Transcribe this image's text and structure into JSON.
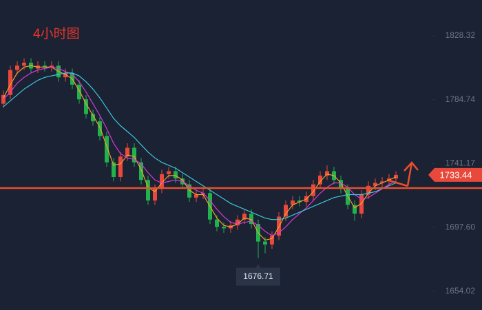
{
  "chart_data": {
    "type": "candlestick",
    "title": "4小时图",
    "ylim": [
      1641.3,
      1852.76
    ],
    "yticks": [
      1828.32,
      {
        "value": 1784.74,
        "label": "1784.74"
      },
      1741.17,
      {
        "value": 1697.6,
        "label": "1697.60"
      },
      1654.02
    ],
    "up_color": "#e8493b",
    "down_color": "#22b24c",
    "candles": {
      "open": [
        1782,
        1788,
        1805,
        1808,
        1810,
        1806,
        1808,
        1807,
        1808,
        1800,
        1803,
        1795,
        1785,
        1775,
        1770,
        1760,
        1742,
        1732,
        1746,
        1752,
        1742,
        1730,
        1716,
        1724,
        1734,
        1736,
        1731,
        1727,
        1718,
        1720,
        1721,
        1703,
        1698,
        1697,
        1699,
        1703,
        1707,
        1700,
        1688,
        1686,
        1692,
        1705,
        1713,
        1716,
        1715,
        1719,
        1727,
        1733,
        1736,
        1730,
        1724,
        1713,
        1707,
        1720,
        1726,
        1728,
        1729,
        1731
      ],
      "high": [
        1791,
        1808,
        1811,
        1813,
        1813,
        1811,
        1811,
        1811,
        1811,
        1806,
        1806,
        1798,
        1788,
        1778,
        1773,
        1763,
        1745,
        1749,
        1755,
        1755,
        1745,
        1733,
        1727,
        1737,
        1739,
        1739,
        1734,
        1730,
        1723,
        1724,
        1724,
        1706,
        1701,
        1702,
        1706,
        1710,
        1710,
        1703,
        1691,
        1695,
        1708,
        1716,
        1719,
        1719,
        1722,
        1730,
        1736,
        1740,
        1739,
        1733,
        1727,
        1716,
        1723,
        1729,
        1731,
        1732,
        1734,
        1736
      ],
      "low": [
        1779,
        1785,
        1802,
        1805,
        1803,
        1803,
        1804,
        1804,
        1797,
        1797,
        1792,
        1782,
        1772,
        1767,
        1757,
        1739,
        1729,
        1729,
        1743,
        1739,
        1727,
        1713,
        1713,
        1721,
        1731,
        1728,
        1724,
        1715,
        1715,
        1717,
        1700,
        1695,
        1694,
        1694,
        1696,
        1700,
        1697,
        1676.71,
        1680,
        1683,
        1689,
        1702,
        1710,
        1712,
        1712,
        1716,
        1724,
        1730,
        1727,
        1721,
        1710,
        1702,
        1704,
        1717,
        1723,
        1725,
        1726,
        1728
      ],
      "close": [
        1788,
        1805,
        1808,
        1810,
        1806,
        1808,
        1807,
        1808,
        1800,
        1803,
        1795,
        1785,
        1775,
        1770,
        1760,
        1742,
        1732,
        1746,
        1752,
        1742,
        1730,
        1716,
        1724,
        1734,
        1736,
        1731,
        1727,
        1718,
        1720,
        1721,
        1703,
        1698,
        1697,
        1699,
        1703,
        1707,
        1700,
        1688,
        1686,
        1692,
        1705,
        1713,
        1716,
        1715,
        1719,
        1727,
        1733,
        1736,
        1730,
        1724,
        1713,
        1707,
        1720,
        1726,
        1728,
        1729,
        1731,
        1733.44
      ]
    },
    "series": [
      {
        "color": "#f0a030",
        "values": [
          1786,
          1795,
          1803,
          1807,
          1808,
          1807,
          1807,
          1807,
          1804,
          1802,
          1799,
          1791,
          1782,
          1774,
          1766,
          1753,
          1740,
          1741,
          1747,
          1746,
          1737,
          1725,
          1722,
          1728,
          1733,
          1733,
          1730,
          1723,
          1720,
          1720,
          1712,
          1704,
          1699,
          1698,
          1700,
          1704,
          1703,
          1694,
          1689,
          1690,
          1698,
          1707,
          1713,
          1715,
          1717,
          1722,
          1729,
          1734,
          1733,
          1728,
          1719,
          1711,
          1714,
          1721,
          1726,
          1728,
          1730,
          1732
        ]
      },
      {
        "color": "#d63ad6",
        "values": [
          1785,
          1790,
          1796,
          1800,
          1803,
          1805,
          1806,
          1807,
          1806,
          1804,
          1802,
          1797,
          1790,
          1782,
          1774,
          1765,
          1755,
          1748,
          1745,
          1744,
          1741,
          1735,
          1730,
          1728,
          1729,
          1730,
          1729,
          1726,
          1723,
          1721,
          1716,
          1710,
          1705,
          1701,
          1700,
          1701,
          1702,
          1699,
          1695,
          1692,
          1694,
          1698,
          1703,
          1707,
          1711,
          1716,
          1721,
          1725,
          1728,
          1728,
          1725,
          1720,
          1717,
          1718,
          1721,
          1724,
          1727,
          1729
        ]
      },
      {
        "color": "#3ec6d8",
        "values": [
          1780,
          1784,
          1788,
          1792,
          1795,
          1798,
          1800,
          1801,
          1802,
          1803,
          1803,
          1801,
          1797,
          1792,
          1786,
          1779,
          1772,
          1767,
          1763,
          1759,
          1754,
          1749,
          1745,
          1742,
          1740,
          1738,
          1735,
          1732,
          1729,
          1726,
          1723,
          1720,
          1717,
          1714,
          1712,
          1710,
          1708,
          1706,
          1704,
          1703,
          1703,
          1704,
          1706,
          1708,
          1710,
          1712,
          1714,
          1716,
          1718,
          1719,
          1720,
          1720,
          1720,
          1721,
          1722,
          1724,
          1726,
          1728
        ]
      }
    ],
    "level": 1724.5,
    "level_color": "#e8502e"
  }
}
